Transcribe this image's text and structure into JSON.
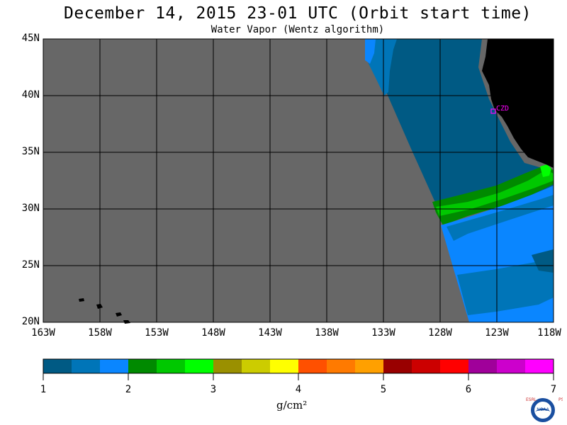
{
  "title": "December 14, 2015  23-01 UTC  (Orbit start time)",
  "subtitle": "Water Vapor (Wentz algorithm)",
  "map": {
    "lat_labels": [
      "45N",
      "40N",
      "35N",
      "30N",
      "25N",
      "20N"
    ],
    "lon_labels": [
      "163W",
      "158W",
      "153W",
      "148W",
      "143W",
      "138W",
      "133W",
      "128W",
      "123W",
      "118W"
    ],
    "station_label": "CZD",
    "colors": {
      "nodata": "#676767",
      "land": "#000000",
      "grid": "#000000",
      "station": "#ff00ff"
    }
  },
  "colorbar": {
    "labels": [
      "1",
      "2",
      "3",
      "4",
      "5",
      "6",
      "7"
    ],
    "units": "g/cm²",
    "colors": [
      "#005a84",
      "#0075b8",
      "#0a86ff",
      "#008a00",
      "#00c800",
      "#00ff00",
      "#9a9000",
      "#cccc00",
      "#ffff00",
      "#ff5000",
      "#ff7a00",
      "#ffa000",
      "#990000",
      "#cc0000",
      "#ff0000",
      "#a0009a",
      "#cc00cc",
      "#ff00ff"
    ]
  },
  "logo": {
    "left_letters": "ESRL",
    "right_letters": "PSD",
    "center_text": "NOAA"
  }
}
